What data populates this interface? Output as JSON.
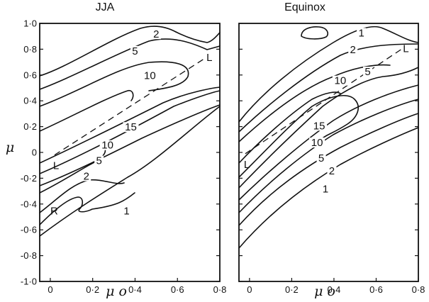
{
  "chart_data": [
    {
      "type": "contour",
      "title": "JJA",
      "xlabel": "μ o",
      "ylabel": "μ",
      "xlim": [
        -0.05,
        0.8
      ],
      "ylim": [
        -1.0,
        1.0
      ],
      "x_ticks": [
        "0",
        "0·2",
        "0·4",
        "0·6",
        "0·8"
      ],
      "y_ticks": [
        "1·0",
        "0·8",
        "0·6",
        "0·4",
        "0·2",
        "0",
        "-0·2",
        "-0·4",
        "-0·6",
        "-0·8",
        "-1·0"
      ],
      "contour_levels": [
        1,
        2,
        5,
        10,
        15
      ],
      "contour_labels": [
        {
          "text": "2",
          "x": 0.5,
          "y": 0.9
        },
        {
          "text": "5",
          "x": 0.4,
          "y": 0.77
        },
        {
          "text": "10",
          "x": 0.47,
          "y": 0.58
        },
        {
          "text": "15",
          "x": 0.38,
          "y": 0.18
        },
        {
          "text": "10",
          "x": 0.27,
          "y": 0.04
        },
        {
          "text": "5",
          "x": 0.23,
          "y": -0.08
        },
        {
          "text": "2",
          "x": 0.17,
          "y": -0.2
        },
        {
          "text": "1",
          "x": 0.36,
          "y": -0.47
        }
      ],
      "dashed_line": {
        "label_start": "L",
        "label_end": "L",
        "from": [
          0.02,
          -0.02
        ],
        "to": [
          0.73,
          0.73
        ]
      },
      "annotations": [
        {
          "text": "R",
          "x": 0.0,
          "y": -0.48
        }
      ]
    },
    {
      "type": "contour",
      "title": "Equinox",
      "xlabel": "μ o",
      "ylabel": "",
      "xlim": [
        -0.05,
        0.8
      ],
      "ylim": [
        -1.0,
        1.0
      ],
      "x_ticks": [
        "0",
        "0·2",
        "0·4",
        "0·6",
        "0·8"
      ],
      "y_ticks": [],
      "contour_levels": [
        1,
        2,
        5,
        10,
        15
      ],
      "contour_labels": [
        {
          "text": "1",
          "x": 0.53,
          "y": 0.91
        },
        {
          "text": "2",
          "x": 0.49,
          "y": 0.78
        },
        {
          "text": "5",
          "x": 0.56,
          "y": 0.61
        },
        {
          "text": "10",
          "x": 0.43,
          "y": 0.54
        },
        {
          "text": "15",
          "x": 0.33,
          "y": 0.19
        },
        {
          "text": "10",
          "x": 0.32,
          "y": 0.06
        },
        {
          "text": "5",
          "x": 0.34,
          "y": -0.06
        },
        {
          "text": "2",
          "x": 0.39,
          "y": -0.16
        },
        {
          "text": "1",
          "x": 0.36,
          "y": -0.3
        }
      ],
      "dashed_line": {
        "label_start": "L",
        "label_end": "L",
        "from": [
          -0.02,
          -0.01
        ],
        "to": [
          0.72,
          0.8
        ]
      },
      "annotations": []
    }
  ]
}
